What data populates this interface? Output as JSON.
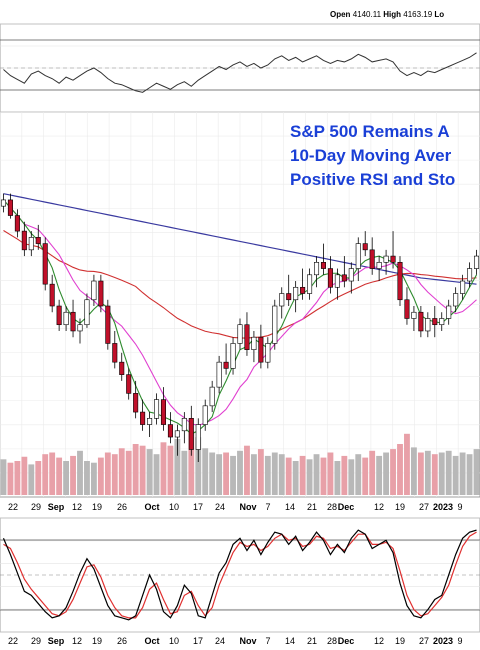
{
  "header": {
    "open_label": "Open",
    "open_value": "4140.11",
    "high_label": "High",
    "high_value": "4163.19",
    "low_label_partial": "Lo"
  },
  "annotation_lines": [
    "S&P 500 Remains A",
    "10-Day Moving Aver",
    "Positive RSI and Sto"
  ],
  "x_axis_labels": [
    "22",
    "29",
    "Sep",
    "12",
    "19",
    "26",
    "Oct",
    "10",
    "17",
    "24",
    "Nov",
    "7",
    "14",
    "21",
    "28",
    "Dec",
    "12",
    "19",
    "27",
    "2023",
    "9"
  ],
  "colors": {
    "annotation": "#1a3fd6",
    "ma_short": "#2e8b2e",
    "ma_mid": "#e040d0",
    "ma_long": "#d03030",
    "ma_200": "#3a3aa0",
    "candle_up": "#ffffff",
    "candle_down": "#c0102a",
    "volume_up": "#b8b8b8",
    "volume_down": "#e8a0a8",
    "stoch_k": "#000000",
    "stoch_d": "#e03030"
  },
  "chart_data": {
    "type": "line",
    "candles": [
      [
        0.82,
        0.86,
        0.8,
        0.84
      ],
      [
        0.84,
        0.86,
        0.78,
        0.79
      ],
      [
        0.79,
        0.81,
        0.72,
        0.74
      ],
      [
        0.74,
        0.77,
        0.66,
        0.68
      ],
      [
        0.68,
        0.74,
        0.66,
        0.72
      ],
      [
        0.72,
        0.76,
        0.68,
        0.7
      ],
      [
        0.7,
        0.72,
        0.55,
        0.57
      ],
      [
        0.57,
        0.6,
        0.48,
        0.5
      ],
      [
        0.5,
        0.52,
        0.42,
        0.44
      ],
      [
        0.44,
        0.5,
        0.42,
        0.48
      ],
      [
        0.48,
        0.52,
        0.4,
        0.42
      ],
      [
        0.42,
        0.46,
        0.38,
        0.44
      ],
      [
        0.44,
        0.54,
        0.43,
        0.52
      ],
      [
        0.52,
        0.6,
        0.5,
        0.58
      ],
      [
        0.58,
        0.6,
        0.48,
        0.5
      ],
      [
        0.5,
        0.52,
        0.36,
        0.38
      ],
      [
        0.38,
        0.42,
        0.3,
        0.32
      ],
      [
        0.32,
        0.35,
        0.26,
        0.28
      ],
      [
        0.28,
        0.3,
        0.2,
        0.22
      ],
      [
        0.22,
        0.26,
        0.14,
        0.16
      ],
      [
        0.16,
        0.2,
        0.1,
        0.12
      ],
      [
        0.12,
        0.16,
        0.08,
        0.14
      ],
      [
        0.14,
        0.22,
        0.12,
        0.2
      ],
      [
        0.2,
        0.24,
        0.1,
        0.12
      ],
      [
        0.12,
        0.16,
        0.06,
        0.08
      ],
      [
        0.08,
        0.12,
        0.02,
        0.1
      ],
      [
        0.1,
        0.16,
        0.06,
        0.14
      ],
      [
        0.14,
        0.18,
        0.02,
        0.04
      ],
      [
        0.04,
        0.14,
        0.0,
        0.12
      ],
      [
        0.12,
        0.2,
        0.1,
        0.18
      ],
      [
        0.18,
        0.26,
        0.16,
        0.24
      ],
      [
        0.24,
        0.34,
        0.22,
        0.32
      ],
      [
        0.32,
        0.38,
        0.28,
        0.3
      ],
      [
        0.3,
        0.4,
        0.28,
        0.38
      ],
      [
        0.38,
        0.46,
        0.36,
        0.44
      ],
      [
        0.44,
        0.48,
        0.34,
        0.36
      ],
      [
        0.36,
        0.42,
        0.32,
        0.4
      ],
      [
        0.4,
        0.44,
        0.3,
        0.32
      ],
      [
        0.32,
        0.4,
        0.3,
        0.38
      ],
      [
        0.38,
        0.52,
        0.36,
        0.5
      ],
      [
        0.5,
        0.56,
        0.46,
        0.54
      ],
      [
        0.54,
        0.6,
        0.5,
        0.52
      ],
      [
        0.52,
        0.58,
        0.48,
        0.56
      ],
      [
        0.56,
        0.62,
        0.52,
        0.54
      ],
      [
        0.54,
        0.62,
        0.52,
        0.6
      ],
      [
        0.6,
        0.66,
        0.56,
        0.64
      ],
      [
        0.64,
        0.7,
        0.6,
        0.62
      ],
      [
        0.62,
        0.66,
        0.54,
        0.56
      ],
      [
        0.56,
        0.62,
        0.52,
        0.6
      ],
      [
        0.6,
        0.66,
        0.56,
        0.58
      ],
      [
        0.58,
        0.64,
        0.54,
        0.62
      ],
      [
        0.62,
        0.72,
        0.58,
        0.7
      ],
      [
        0.7,
        0.74,
        0.66,
        0.68
      ],
      [
        0.68,
        0.72,
        0.6,
        0.62
      ],
      [
        0.62,
        0.66,
        0.58,
        0.64
      ],
      [
        0.64,
        0.68,
        0.6,
        0.66
      ],
      [
        0.66,
        0.74,
        0.62,
        0.64
      ],
      [
        0.64,
        0.66,
        0.5,
        0.52
      ],
      [
        0.52,
        0.56,
        0.44,
        0.46
      ],
      [
        0.46,
        0.5,
        0.42,
        0.48
      ],
      [
        0.48,
        0.5,
        0.4,
        0.42
      ],
      [
        0.42,
        0.48,
        0.4,
        0.46
      ],
      [
        0.46,
        0.5,
        0.4,
        0.44
      ],
      [
        0.44,
        0.48,
        0.42,
        0.46
      ],
      [
        0.46,
        0.52,
        0.44,
        0.5
      ],
      [
        0.5,
        0.56,
        0.48,
        0.54
      ],
      [
        0.54,
        0.6,
        0.52,
        0.58
      ],
      [
        0.58,
        0.64,
        0.56,
        0.62
      ],
      [
        0.62,
        0.68,
        0.6,
        0.66
      ]
    ],
    "volume": [
      0.42,
      0.38,
      0.4,
      0.45,
      0.36,
      0.4,
      0.48,
      0.5,
      0.44,
      0.4,
      0.46,
      0.52,
      0.4,
      0.38,
      0.44,
      0.5,
      0.48,
      0.55,
      0.52,
      0.6,
      0.58,
      0.54,
      0.48,
      0.62,
      0.58,
      0.66,
      0.52,
      0.75,
      0.68,
      0.55,
      0.5,
      0.48,
      0.5,
      0.46,
      0.52,
      0.58,
      0.48,
      0.54,
      0.46,
      0.5,
      0.48,
      0.44,
      0.4,
      0.46,
      0.42,
      0.48,
      0.44,
      0.5,
      0.4,
      0.46,
      0.42,
      0.48,
      0.44,
      0.52,
      0.46,
      0.5,
      0.54,
      0.6,
      0.72,
      0.56,
      0.5,
      0.52,
      0.48,
      0.5,
      0.52,
      0.46,
      0.5,
      0.48,
      0.54
    ],
    "rsi": [
      0.48,
      0.4,
      0.35,
      0.3,
      0.42,
      0.46,
      0.4,
      0.36,
      0.3,
      0.38,
      0.34,
      0.4,
      0.46,
      0.5,
      0.44,
      0.36,
      0.3,
      0.28,
      0.24,
      0.2,
      0.18,
      0.24,
      0.3,
      0.26,
      0.22,
      0.28,
      0.32,
      0.26,
      0.34,
      0.4,
      0.46,
      0.52,
      0.48,
      0.54,
      0.58,
      0.52,
      0.56,
      0.5,
      0.54,
      0.62,
      0.66,
      0.6,
      0.64,
      0.58,
      0.62,
      0.66,
      0.6,
      0.56,
      0.6,
      0.58,
      0.62,
      0.68,
      0.64,
      0.58,
      0.6,
      0.62,
      0.58,
      0.46,
      0.4,
      0.44,
      0.4,
      0.46,
      0.44,
      0.48,
      0.52,
      0.56,
      0.6,
      0.64,
      0.7
    ],
    "stoch_k": [
      0.86,
      0.7,
      0.52,
      0.34,
      0.3,
      0.22,
      0.14,
      0.08,
      0.1,
      0.18,
      0.34,
      0.52,
      0.66,
      0.56,
      0.38,
      0.2,
      0.1,
      0.08,
      0.06,
      0.1,
      0.3,
      0.5,
      0.36,
      0.14,
      0.08,
      0.2,
      0.4,
      0.32,
      0.1,
      0.08,
      0.3,
      0.52,
      0.62,
      0.8,
      0.86,
      0.74,
      0.84,
      0.7,
      0.82,
      0.92,
      0.9,
      0.8,
      0.88,
      0.74,
      0.82,
      0.92,
      0.84,
      0.7,
      0.8,
      0.72,
      0.86,
      0.94,
      0.9,
      0.76,
      0.8,
      0.84,
      0.72,
      0.42,
      0.2,
      0.1,
      0.08,
      0.16,
      0.26,
      0.3,
      0.5,
      0.7,
      0.86,
      0.92,
      0.94
    ],
    "stoch_d": [
      0.8,
      0.76,
      0.62,
      0.46,
      0.36,
      0.28,
      0.2,
      0.12,
      0.1,
      0.14,
      0.26,
      0.42,
      0.58,
      0.6,
      0.48,
      0.3,
      0.18,
      0.1,
      0.08,
      0.08,
      0.18,
      0.36,
      0.42,
      0.26,
      0.12,
      0.14,
      0.3,
      0.34,
      0.2,
      0.1,
      0.18,
      0.4,
      0.56,
      0.72,
      0.82,
      0.78,
      0.8,
      0.74,
      0.78,
      0.86,
      0.9,
      0.84,
      0.86,
      0.78,
      0.8,
      0.88,
      0.86,
      0.76,
      0.78,
      0.74,
      0.82,
      0.9,
      0.9,
      0.8,
      0.8,
      0.82,
      0.76,
      0.54,
      0.3,
      0.16,
      0.1,
      0.12,
      0.2,
      0.28,
      0.4,
      0.6,
      0.78,
      0.88,
      0.92
    ]
  }
}
